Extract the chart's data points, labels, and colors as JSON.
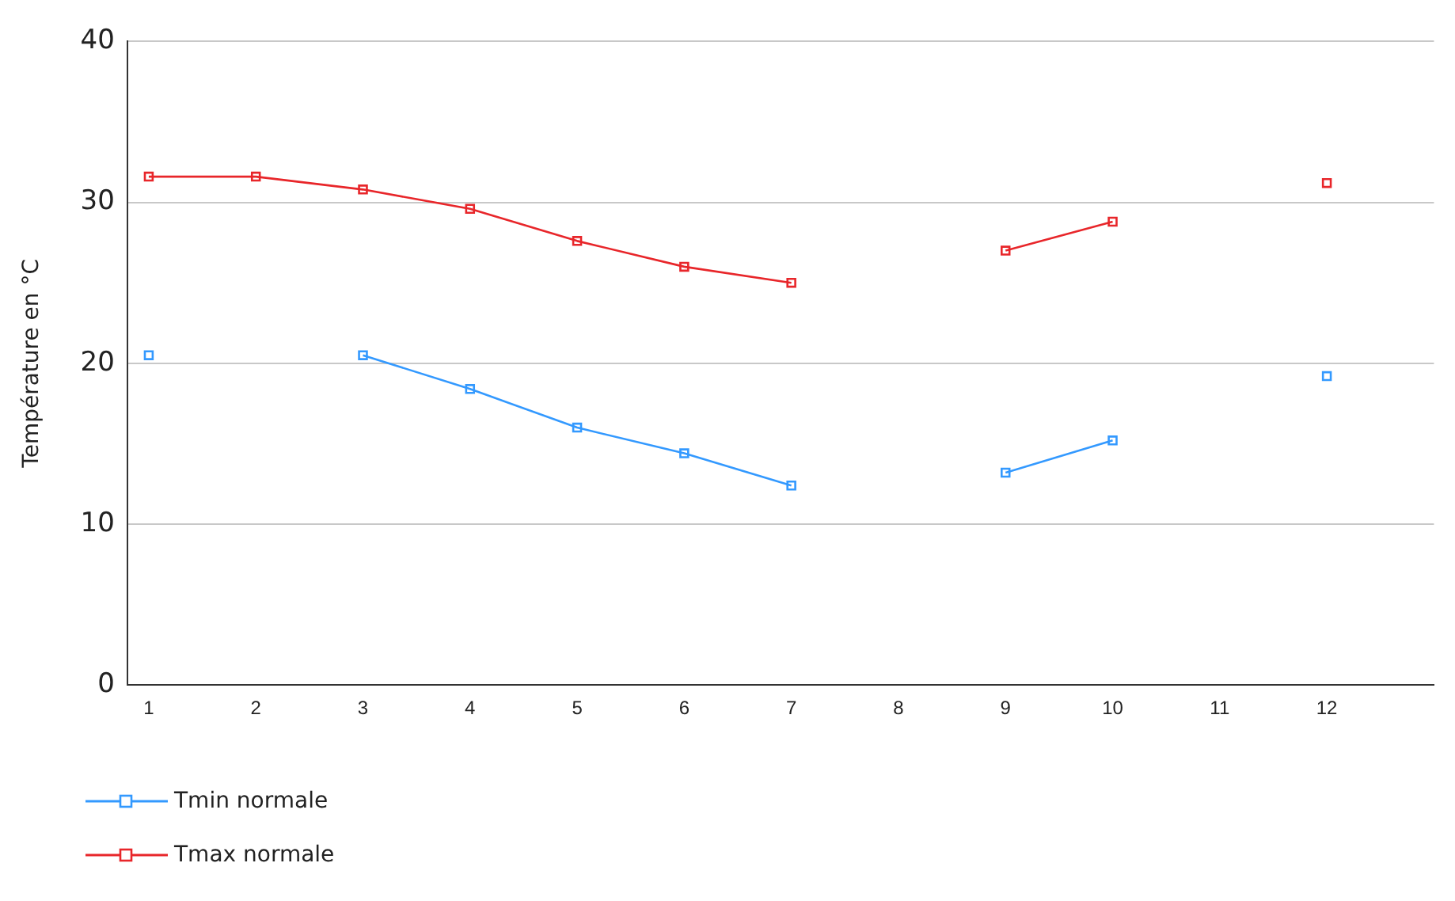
{
  "chart_data": {
    "type": "line",
    "ylabel": "Température en °C",
    "x": [
      1,
      2,
      3,
      4,
      5,
      6,
      7,
      8,
      9,
      10,
      11,
      12
    ],
    "xlim": [
      0.8,
      13
    ],
    "xticks": [
      1,
      2,
      3,
      4,
      5,
      6,
      7,
      8,
      9,
      10,
      11,
      12
    ],
    "ylim": [
      0,
      40
    ],
    "yticks": [
      0,
      10,
      20,
      30,
      40
    ],
    "grid": "y",
    "legend": "bottom left",
    "marker": "square",
    "line_style": "solid",
    "series": [
      {
        "name": "Tmin normale",
        "color": "#3399ff",
        "values": [
          20.5,
          null,
          20.5,
          18.4,
          16.0,
          14.4,
          12.4,
          null,
          13.2,
          15.2,
          null,
          19.2
        ]
      },
      {
        "name": "Tmax normale",
        "color": "#e8262a",
        "values": [
          31.6,
          31.6,
          30.8,
          29.6,
          27.6,
          26.0,
          25.0,
          null,
          27.0,
          28.8,
          null,
          31.2
        ]
      }
    ]
  }
}
